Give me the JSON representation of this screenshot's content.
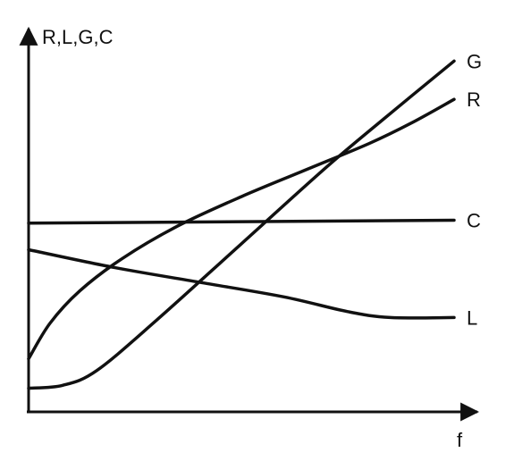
{
  "chart_data": {
    "type": "line",
    "title": "",
    "xlabel": "f",
    "ylabel": "R,L,G,C",
    "grid": false,
    "legend": "none",
    "series": [
      {
        "name": "G",
        "points": [
          [
            0.0,
            0.08
          ],
          [
            0.08,
            0.09
          ],
          [
            0.16,
            0.14
          ],
          [
            0.3,
            0.31
          ],
          [
            0.5,
            0.57
          ],
          [
            0.7,
            0.83
          ],
          [
            0.84,
            1.0
          ],
          [
            1.0,
            1.19
          ]
        ]
      },
      {
        "name": "R",
        "points": [
          [
            0.0,
            0.18
          ],
          [
            0.05,
            0.3
          ],
          [
            0.12,
            0.41
          ],
          [
            0.22,
            0.52
          ],
          [
            0.35,
            0.63
          ],
          [
            0.5,
            0.73
          ],
          [
            0.65,
            0.82
          ],
          [
            0.8,
            0.91
          ],
          [
            0.9,
            0.98
          ],
          [
            1.0,
            1.06
          ]
        ]
      },
      {
        "name": "C",
        "points": [
          [
            0.0,
            0.64
          ],
          [
            1.0,
            0.65
          ]
        ]
      },
      {
        "name": "L",
        "points": [
          [
            0.0,
            0.55
          ],
          [
            0.2,
            0.49
          ],
          [
            0.4,
            0.44
          ],
          [
            0.6,
            0.39
          ],
          [
            0.75,
            0.34
          ],
          [
            0.85,
            0.32
          ],
          [
            1.0,
            0.32
          ]
        ]
      }
    ]
  }
}
